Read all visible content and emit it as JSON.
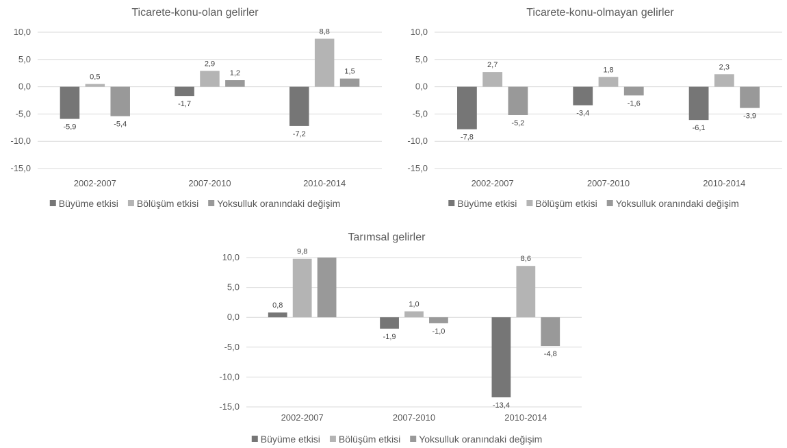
{
  "chart_data": [
    {
      "type": "bar",
      "title": "Ticarete-konu-olan gelirler",
      "categories": [
        "2002-2007",
        "2007-2010",
        "2010-2014"
      ],
      "series": [
        {
          "name": "Büyüme etkisi",
          "values": [
            -5.9,
            -1.7,
            -7.2
          ],
          "labels": [
            "-5,9",
            "-1,7",
            "-7,2"
          ]
        },
        {
          "name": "Bölüşüm etkisi",
          "values": [
            0.5,
            2.9,
            8.8
          ],
          "labels": [
            "0,5",
            "2,9",
            "8,8"
          ]
        },
        {
          "name": "Yoksulluk oranındaki değişim",
          "values": [
            -5.4,
            1.2,
            1.5
          ],
          "labels": [
            "-5,4",
            "1,2",
            "1,5"
          ]
        }
      ],
      "ylim": [
        -15,
        10
      ],
      "yticks": [
        10,
        5,
        0,
        -5,
        -10,
        -15
      ],
      "ytick_labels": [
        "10,0",
        "5,0",
        "0,0",
        "-5,0",
        "-10,0",
        "-15,0"
      ],
      "grid": true,
      "legend": "bottom"
    },
    {
      "type": "bar",
      "title": "Ticarete-konu-olmayan gelirler",
      "categories": [
        "2002-2007",
        "2007-2010",
        "2010-2014"
      ],
      "series": [
        {
          "name": "Büyüme etkisi",
          "values": [
            -7.8,
            -3.4,
            -6.1
          ],
          "labels": [
            "-7,8",
            "-3,4",
            "-6,1"
          ]
        },
        {
          "name": "Bölüşüm etkisi",
          "values": [
            2.7,
            1.8,
            2.3
          ],
          "labels": [
            "2,7",
            "1,8",
            "2,3"
          ]
        },
        {
          "name": "Yoksulluk oranındaki değişim",
          "values": [
            -5.2,
            -1.6,
            -3.9
          ],
          "labels": [
            "-5,2",
            "-1,6",
            "-3,9"
          ]
        }
      ],
      "ylim": [
        -15,
        10
      ],
      "yticks": [
        10,
        5,
        0,
        -5,
        -10,
        -15
      ],
      "ytick_labels": [
        "10,0",
        "5,0",
        "0,0",
        "-5,0",
        "-10,0",
        "-15,0"
      ],
      "grid": true,
      "legend": "bottom"
    },
    {
      "type": "bar",
      "title": "Tarımsal gelirler",
      "categories": [
        "2002-2007",
        "2007-2010",
        "2010-2014"
      ],
      "series": [
        {
          "name": "Büyüme etkisi",
          "values": [
            0.8,
            -1.9,
            -13.4
          ],
          "labels": [
            "0,8",
            "-1,9",
            "-13,4"
          ]
        },
        {
          "name": "Bölüşüm etkisi",
          "values": [
            9.8,
            1.0,
            8.6
          ],
          "labels": [
            "9,8",
            "1,0",
            "8,6"
          ]
        },
        {
          "name": "Yoksulluk oranındaki değişim",
          "values": [
            10.0,
            -1.0,
            -4.8
          ],
          "labels": [
            "",
            "-1,0",
            "-4,8"
          ]
        }
      ],
      "ylim": [
        -15,
        10
      ],
      "yticks": [
        10,
        5,
        0,
        -5,
        -10,
        -15
      ],
      "ytick_labels": [
        "10,0",
        "5,0",
        "0,0",
        "-5,0",
        "-10,0",
        "-15,0"
      ],
      "grid": true,
      "legend": "bottom"
    }
  ],
  "colors": {
    "series": [
      "#767676",
      "#b4b4b4",
      "#999999"
    ],
    "grid": "#d9d9d9",
    "text": "#595959"
  }
}
